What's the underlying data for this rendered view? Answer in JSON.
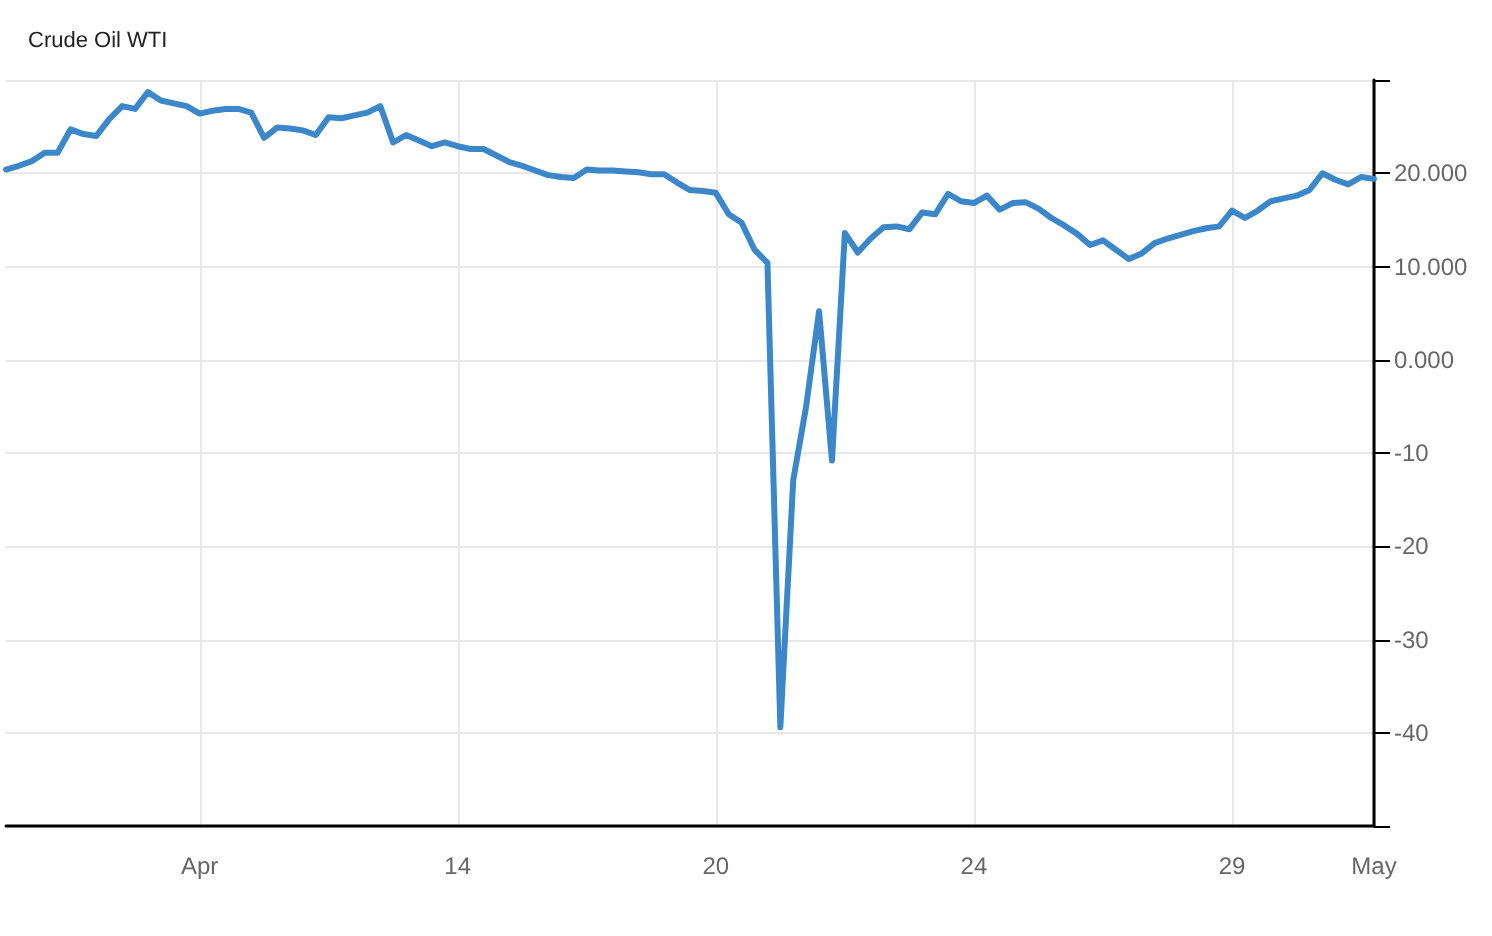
{
  "chart_data": {
    "type": "line",
    "title": "Crude Oil WTI",
    "categories": [
      null,
      null,
      null,
      null,
      null,
      null,
      null,
      null,
      null,
      null,
      null,
      null,
      null,
      null,
      null,
      "Apr",
      null,
      null,
      null,
      null,
      null,
      null,
      null,
      null,
      null,
      null,
      null,
      null,
      null,
      null,
      null,
      null,
      null,
      null,
      null,
      "14",
      null,
      null,
      null,
      null,
      null,
      null,
      null,
      null,
      null,
      null,
      null,
      null,
      null,
      null,
      null,
      null,
      null,
      null,
      null,
      "20",
      null,
      null,
      null,
      null,
      null,
      null,
      null,
      null,
      null,
      null,
      null,
      null,
      null,
      null,
      null,
      null,
      null,
      null,
      null,
      "24",
      null,
      null,
      null,
      null,
      null,
      null,
      null,
      null,
      null,
      null,
      null,
      null,
      null,
      null,
      null,
      null,
      null,
      null,
      null,
      "29",
      null,
      null,
      null,
      null,
      null,
      null,
      null,
      null,
      null,
      null,
      "May"
    ],
    "series": [
      {
        "color": "#3b87c9",
        "values": [
          20.4,
          20.8,
          21.3,
          22.2,
          22.2,
          24.7,
          24.2,
          24.0,
          25.8,
          27.2,
          26.9,
          28.7,
          27.8,
          27.5,
          27.2,
          26.4,
          26.7,
          26.9,
          26.9,
          26.5,
          23.8,
          24.9,
          24.8,
          24.6,
          24.1,
          26.0,
          25.9,
          26.2,
          26.5,
          27.2,
          23.3,
          24.1,
          23.5,
          22.9,
          23.3,
          22.9,
          22.6,
          22.6,
          21.9,
          21.2,
          20.8,
          20.3,
          19.8,
          19.6,
          19.5,
          20.4,
          20.3,
          20.3,
          20.2,
          20.1,
          19.9,
          19.9,
          19.0,
          18.2,
          18.1,
          17.9,
          15.6,
          14.7,
          11.8,
          10.4,
          -39.4,
          -12.9,
          -5,
          5.2,
          -10.8,
          13.6,
          11.5,
          13.0,
          14.2,
          14.3,
          14.0,
          15.8,
          15.6,
          17.8,
          17.0,
          16.8,
          17.6,
          16.1,
          16.8,
          16.9,
          16.2,
          15.2,
          14.4,
          13.5,
          12.3,
          12.8,
          11.8,
          10.8,
          11.4,
          12.5,
          13.0,
          13.4,
          13.8,
          14.1,
          14.3,
          16.0,
          15.2,
          16.0,
          17.0,
          17.3,
          17.6,
          18.2,
          20.0,
          19.3,
          18.8,
          19.6,
          19.4
        ]
      }
    ],
    "ylim": [
      -50,
      30
    ],
    "yticks": [
      {
        "value": -50,
        "label": null
      },
      -40,
      -30,
      -20,
      -10,
      {
        "value": 0,
        "label": "0.000"
      },
      {
        "value": 10,
        "label": "10.000"
      },
      {
        "value": 20,
        "label": "20.000"
      },
      {
        "value": 30,
        "label": null
      }
    ],
    "grid": true,
    "marker": "none",
    "line_style": "solid"
  }
}
